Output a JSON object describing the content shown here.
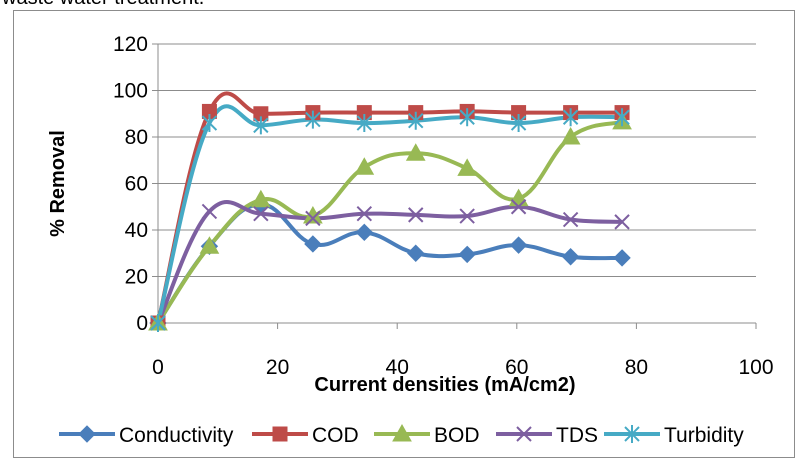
{
  "caption_fragment": "waste water treatment.",
  "chart_data": {
    "type": "line",
    "title": "",
    "xlabel": "Current densities (mA/cm2)",
    "ylabel": "% Removal",
    "xlim": [
      0,
      100
    ],
    "ylim": [
      0,
      120
    ],
    "x_ticks": [
      0,
      20,
      40,
      60,
      80,
      100
    ],
    "y_ticks": [
      0,
      20,
      40,
      60,
      80,
      100,
      120
    ],
    "grid": "horizontal",
    "legend_position": "bottom",
    "smooth": true,
    "series": [
      {
        "name": "Conductivity",
        "color": "#4a7ebb",
        "marker": "diamond",
        "x": [
          0,
          8.6,
          17.2,
          25.9,
          34.5,
          43.1,
          51.7,
          60.3,
          69,
          77.6
        ],
        "y": [
          0,
          33,
          51,
          34,
          39,
          30,
          29.5,
          33.5,
          28.5,
          28
        ]
      },
      {
        "name": "COD",
        "color": "#be4b48",
        "marker": "square",
        "x": [
          0,
          8.6,
          17.2,
          25.9,
          34.5,
          43.1,
          51.7,
          60.3,
          69,
          77.6
        ],
        "y": [
          0,
          91,
          90,
          90.5,
          90.5,
          90.5,
          91,
          90.5,
          90.5,
          90.5
        ]
      },
      {
        "name": "BOD",
        "color": "#98b954",
        "marker": "triangle",
        "x": [
          0,
          8.6,
          17.2,
          25.9,
          34.5,
          43.1,
          51.7,
          60.3,
          69,
          77.6
        ],
        "y": [
          0,
          33,
          53,
          46,
          67,
          73,
          66.5,
          53.5,
          80,
          86.5
        ]
      },
      {
        "name": "TDS",
        "color": "#7d5fa0",
        "marker": "x",
        "x": [
          0,
          8.6,
          17.2,
          25.9,
          34.5,
          43.1,
          51.7,
          60.3,
          69,
          77.6
        ],
        "y": [
          0,
          48,
          47,
          45,
          47,
          46.5,
          46,
          50,
          44.5,
          43.5
        ]
      },
      {
        "name": "Turbidity",
        "color": "#46aac5",
        "marker": "star",
        "x": [
          0,
          8.6,
          17.2,
          25.9,
          34.5,
          43.1,
          51.7,
          60.3,
          69,
          77.6
        ],
        "y": [
          0,
          86,
          85,
          87.5,
          86,
          87,
          88.5,
          86,
          88.5,
          88.5
        ]
      }
    ]
  }
}
